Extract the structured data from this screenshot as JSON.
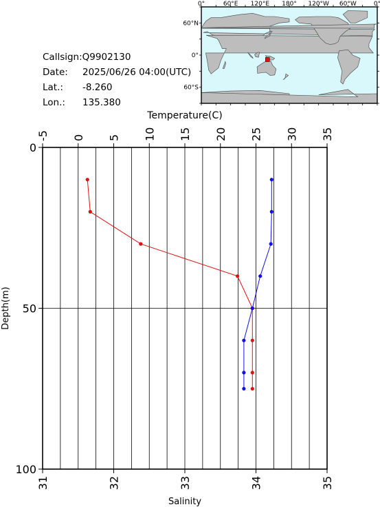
{
  "info": {
    "callsign_label": "Callsign:",
    "callsign": "Q9902130",
    "date_label": "Date:",
    "date": "2025/06/26 04:00(UTC)",
    "lat_label": "Lat.:",
    "lat": "-8.260",
    "lon_label": "Lon.:",
    "lon": "135.380"
  },
  "map": {
    "lon_ticks": [
      "0°",
      "60°E",
      "120°E",
      "180°",
      "120°W",
      "60°W",
      "0°"
    ],
    "lat_ticks": [
      "60°N",
      "0°",
      "60°S"
    ],
    "ocean_color": "#d9f8fb",
    "land_color": "#bdbdbd",
    "marker_color": "#e01010",
    "marker": {
      "lon": 135.38,
      "lat": -8.26
    }
  },
  "chart_data": {
    "type": "line",
    "ylabel": "Depth(m)",
    "ylim": [
      0,
      100
    ],
    "y_ticks": [
      "0",
      "50",
      "100"
    ],
    "y_inverted": true,
    "grid": true,
    "top_axis": {
      "label": "Temperature(C)",
      "range": [
        -5,
        35
      ],
      "ticks": [
        "-5",
        "0",
        "5",
        "10",
        "15",
        "20",
        "25",
        "30",
        "35"
      ]
    },
    "bottom_axis": {
      "label": "Salinity",
      "range": [
        31,
        35
      ],
      "ticks": [
        "31",
        "32",
        "33",
        "34",
        "35"
      ]
    },
    "series": [
      {
        "axis": "top",
        "color": "#e01010",
        "points": [
          [
            1.3,
            10
          ],
          [
            1.7,
            20
          ],
          [
            8.8,
            30
          ],
          [
            22.4,
            40
          ],
          [
            24.5,
            50
          ],
          [
            24.5,
            60
          ],
          [
            24.5,
            70
          ],
          [
            24.5,
            75
          ]
        ]
      },
      {
        "axis": "bottom",
        "color": "#1010e0",
        "points": [
          [
            34.22,
            10
          ],
          [
            34.22,
            20
          ],
          [
            34.21,
            30
          ],
          [
            34.06,
            40
          ],
          [
            33.95,
            50
          ],
          [
            33.83,
            60
          ],
          [
            33.83,
            70
          ],
          [
            33.83,
            75
          ]
        ]
      }
    ]
  }
}
